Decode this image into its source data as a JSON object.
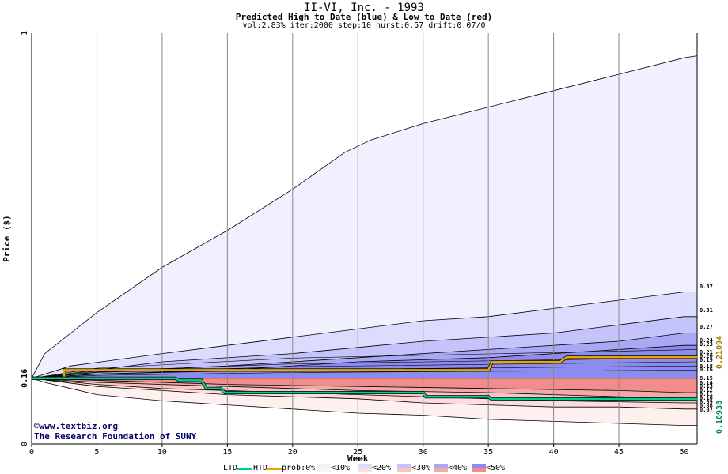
{
  "chart_data": {
    "type": "area",
    "title": "II-VI, Inc. - 1993",
    "subtitle": "Predicted High to Date (blue) &  Low to Date (red)",
    "params": "vol:2.83% iter:2000 step:10 hurst:0.57 drift:0.07/0",
    "xlabel": "Week",
    "ylabel": "Price ($)",
    "xlim": [
      0,
      51
    ],
    "ylim": [
      0,
      1
    ],
    "x_ticks": [
      0,
      5,
      10,
      15,
      20,
      25,
      30,
      35,
      40,
      45,
      50
    ],
    "y_tick_labels": [
      "0",
      "0.16",
      "1"
    ],
    "start_price": 0.16,
    "high_bands": [
      {
        "prob": "<10%",
        "points": [
          [
            0,
            0.16
          ],
          [
            1,
            0.22
          ],
          [
            5,
            0.32
          ],
          [
            10,
            0.43
          ],
          [
            15,
            0.52
          ],
          [
            20,
            0.62
          ],
          [
            24,
            0.71
          ],
          [
            26,
            0.74
          ],
          [
            30,
            0.78
          ],
          [
            35,
            0.82
          ],
          [
            40,
            0.86
          ],
          [
            45,
            0.9
          ],
          [
            50,
            0.94
          ],
          [
            51,
            0.945
          ]
        ]
      },
      {
        "prob": "<20%",
        "points": [
          [
            0,
            0.16
          ],
          [
            3,
            0.19
          ],
          [
            10,
            0.22
          ],
          [
            15,
            0.24
          ],
          [
            20,
            0.26
          ],
          [
            25,
            0.28
          ],
          [
            30,
            0.3
          ],
          [
            35,
            0.31
          ],
          [
            40,
            0.33
          ],
          [
            45,
            0.35
          ],
          [
            50,
            0.37
          ],
          [
            51,
            0.37
          ]
        ]
      },
      {
        "prob": "<30%",
        "points": [
          [
            0,
            0.16
          ],
          [
            5,
            0.18
          ],
          [
            10,
            0.2
          ],
          [
            20,
            0.22
          ],
          [
            30,
            0.25
          ],
          [
            40,
            0.27
          ],
          [
            45,
            0.29
          ],
          [
            50,
            0.31
          ],
          [
            51,
            0.31
          ]
        ]
      },
      {
        "prob": "<40%",
        "points": [
          [
            0,
            0.16
          ],
          [
            5,
            0.175
          ],
          [
            15,
            0.19
          ],
          [
            25,
            0.21
          ],
          [
            35,
            0.23
          ],
          [
            45,
            0.25
          ],
          [
            50,
            0.27
          ],
          [
            51,
            0.27
          ]
        ]
      },
      {
        "prob": "<50%",
        "points": [
          [
            0,
            0.16
          ],
          [
            5,
            0.17
          ],
          [
            15,
            0.18
          ],
          [
            25,
            0.2
          ],
          [
            35,
            0.21
          ],
          [
            45,
            0.23
          ],
          [
            50,
            0.24
          ],
          [
            51,
            0.24
          ]
        ]
      }
    ],
    "high_inner_levels": [
      0.23,
      0.21,
      0.2,
      0.19,
      0.18,
      0.16
    ],
    "low_bands": [
      {
        "prob": "<10%",
        "points": [
          [
            0,
            0.16
          ],
          [
            1,
            0.15
          ],
          [
            3,
            0.135
          ],
          [
            5,
            0.12
          ],
          [
            10,
            0.105
          ],
          [
            15,
            0.095
          ],
          [
            20,
            0.085
          ],
          [
            25,
            0.075
          ],
          [
            30,
            0.07
          ],
          [
            35,
            0.06
          ],
          [
            40,
            0.055
          ],
          [
            45,
            0.05
          ],
          [
            50,
            0.045
          ],
          [
            51,
            0.045
          ]
        ]
      },
      {
        "prob": "<20%",
        "points": [
          [
            0,
            0.16
          ],
          [
            5,
            0.14
          ],
          [
            10,
            0.13
          ],
          [
            15,
            0.12
          ],
          [
            20,
            0.115
          ],
          [
            25,
            0.11
          ],
          [
            30,
            0.1
          ],
          [
            35,
            0.095
          ],
          [
            40,
            0.09
          ],
          [
            45,
            0.09
          ],
          [
            50,
            0.085
          ],
          [
            51,
            0.085
          ]
        ]
      },
      {
        "prob": "<30%",
        "points": [
          [
            0,
            0.16
          ],
          [
            5,
            0.145
          ],
          [
            10,
            0.135
          ],
          [
            20,
            0.125
          ],
          [
            30,
            0.115
          ],
          [
            40,
            0.105
          ],
          [
            50,
            0.1
          ],
          [
            51,
            0.1
          ]
        ]
      },
      {
        "prob": "<40%",
        "points": [
          [
            0,
            0.16
          ],
          [
            5,
            0.15
          ],
          [
            15,
            0.14
          ],
          [
            25,
            0.13
          ],
          [
            35,
            0.125
          ],
          [
            45,
            0.115
          ],
          [
            50,
            0.11
          ],
          [
            51,
            0.11
          ]
        ]
      },
      {
        "prob": "<50%",
        "points": [
          [
            0,
            0.16
          ],
          [
            5,
            0.155
          ],
          [
            15,
            0.145
          ],
          [
            25,
            0.14
          ],
          [
            35,
            0.135
          ],
          [
            45,
            0.13
          ],
          [
            50,
            0.125
          ],
          [
            51,
            0.125
          ]
        ]
      }
    ],
    "series": [
      {
        "name": "HTD",
        "color": "#e6a800",
        "points": [
          [
            0,
            0.16
          ],
          [
            2.5,
            0.16
          ],
          [
            2.5,
            0.18
          ],
          [
            35,
            0.18
          ],
          [
            35.3,
            0.2
          ],
          [
            40.5,
            0.2
          ],
          [
            41,
            0.21094
          ],
          [
            51,
            0.21094
          ]
        ]
      },
      {
        "name": "LTD",
        "color": "#00d090",
        "points": [
          [
            0,
            0.16
          ],
          [
            11,
            0.16
          ],
          [
            11.3,
            0.155
          ],
          [
            13,
            0.155
          ],
          [
            13.4,
            0.135
          ],
          [
            14.5,
            0.135
          ],
          [
            14.8,
            0.125
          ],
          [
            30,
            0.125
          ],
          [
            30.2,
            0.115
          ],
          [
            35,
            0.115
          ],
          [
            35.2,
            0.11
          ],
          [
            51,
            0.10938
          ]
        ]
      }
    ],
    "right_labels": [
      "0.37",
      "0.31",
      "0.27",
      "0.24",
      "0.23",
      "0.21",
      "0.20",
      "0.19",
      "0.18",
      "0.16",
      "0.15",
      "0.14",
      "0.13",
      "0.12",
      "0.11",
      "0.10",
      "0.09",
      "0.08",
      "0.07"
    ],
    "htd_value_label": "0.21094",
    "ltd_value_label": "0.10938",
    "legend": {
      "ltd": "LTD",
      "htd": "HTD",
      "prob_prefix": "prob:0%",
      "items": [
        "<10%",
        "<20%",
        "<30%",
        "<40%",
        "<50%"
      ]
    },
    "colors": {
      "high": [
        "#f0f0ff",
        "#dcdcff",
        "#c4c4fa",
        "#a8a8f4",
        "#8c8cf0"
      ],
      "low": [
        "#fff0f0",
        "#ffdcdc",
        "#fac4c4",
        "#f4a8a8",
        "#f08c8c"
      ],
      "htd": "#e6a800",
      "ltd": "#00d090",
      "grid": "#888888"
    }
  },
  "watermark": {
    "line1": "©www.textbiz.org",
    "line2": "The Research Foundation of SUNY"
  }
}
